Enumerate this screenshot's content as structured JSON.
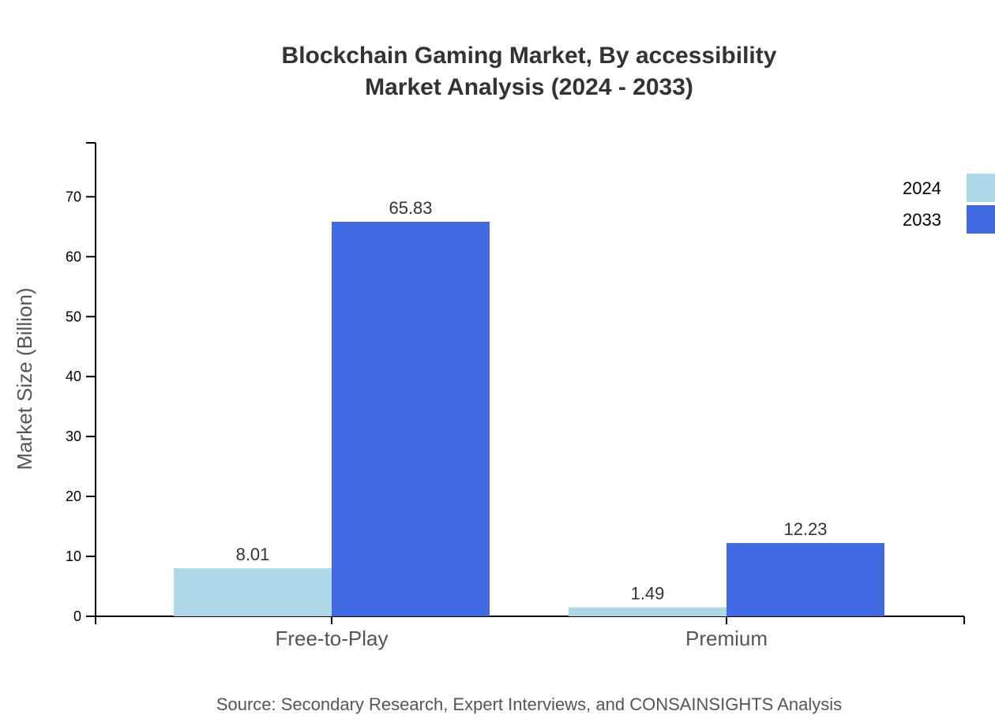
{
  "chart_data": {
    "type": "bar",
    "title": [
      "Blockchain Gaming Market, By accessibility",
      "Market Analysis (2024 - 2033)"
    ],
    "xlabel": "",
    "ylabel": "Market Size (Billion)",
    "categories": [
      "Free-to-Play",
      "Premium"
    ],
    "series": [
      {
        "name": "2024",
        "color": "#ADD8E6",
        "values": [
          8.01,
          1.49
        ],
        "labels": [
          "8.01",
          "1.49"
        ]
      },
      {
        "name": "2033",
        "color": "#4169E1",
        "values": [
          65.83,
          12.23
        ],
        "labels": [
          "65.83",
          "12.23"
        ]
      }
    ],
    "ylim": [
      0,
      79
    ],
    "yticks": [
      "0",
      "10",
      "20",
      "30",
      "40",
      "50",
      "60",
      "70"
    ],
    "grid": false,
    "legend": "top-right",
    "source": "Source: Secondary Research, Expert Interviews, and CONSAINSIGHTS Analysis"
  }
}
